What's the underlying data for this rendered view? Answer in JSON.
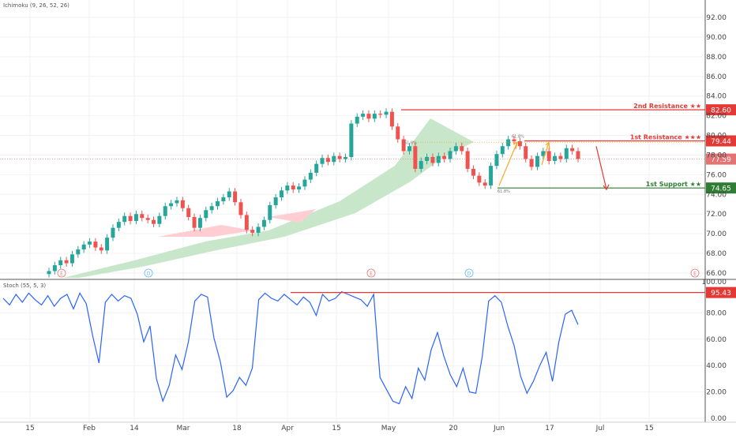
{
  "indicator_main": "Ichimoku (9, 26, 52, 26)",
  "indicator_sub": "Stoch (55, 5, 3)",
  "colors": {
    "up": "#26a69a",
    "down": "#ef5350",
    "resistance": "#e53935",
    "support": "#2e7d32",
    "last": "#e57373",
    "stoch": "#2962ff",
    "grid": "#f2f2f2"
  },
  "chart_data": [
    {
      "type": "candlestick",
      "title": "",
      "ylim": [
        65.5,
        93
      ],
      "y_ticks": [
        "92.00",
        "90.00",
        "88.00",
        "86.00",
        "84.00",
        "82.00",
        "80.00",
        "78.00",
        "76.00",
        "74.00",
        "72.00",
        "70.00",
        "68.00",
        "66.00"
      ],
      "x_ticks": [
        "15",
        "Feb",
        "14",
        "Mar",
        "18",
        "Apr",
        "15",
        "May",
        "20",
        "Jun",
        "17",
        "Jul",
        "15"
      ],
      "levels": [
        {
          "label": "2nd Resistance ★★",
          "value": 82.6,
          "value_text": "82.60",
          "color": "#e53935"
        },
        {
          "label": "1st Resistance ★★★",
          "value": 79.44,
          "value_text": "79.44",
          "color": "#e53935"
        },
        {
          "label": "1st Support ★★",
          "value": 74.65,
          "value_text": "74.65",
          "color": "#2e7d32"
        }
      ],
      "last_price": {
        "value": 77.59,
        "value_text": "77.59"
      },
      "fib_labels": [
        "61.8%",
        "61.8%",
        "61.8%"
      ],
      "close_series": [
        66.2,
        66.8,
        67.3,
        67.0,
        67.9,
        68.4,
        68.9,
        69.2,
        68.6,
        68.3,
        69.6,
        70.6,
        71.2,
        71.8,
        71.3,
        72.0,
        71.6,
        71.4,
        71.0,
        71.8,
        72.8,
        73.1,
        73.4,
        72.6,
        71.7,
        70.6,
        71.6,
        72.4,
        72.8,
        73.3,
        73.7,
        74.3,
        73.2,
        71.9,
        70.4,
        70.1,
        70.7,
        71.4,
        72.9,
        73.7,
        74.4,
        74.9,
        74.5,
        74.8,
        75.5,
        76.2,
        77.1,
        77.7,
        77.3,
        77.9,
        77.6,
        77.8,
        81.2,
        81.9,
        82.2,
        81.7,
        82.2,
        82.1,
        82.4,
        80.9,
        79.6,
        78.4,
        78.9,
        76.6,
        77.4,
        77.8,
        77.2,
        77.9,
        77.6,
        78.4,
        78.9,
        78.4,
        76.6,
        75.9,
        75.2,
        74.9,
        76.9,
        78.1,
        78.9,
        79.6,
        79.4,
        78.9,
        77.6,
        76.8,
        77.9,
        78.4,
        77.4,
        77.9,
        77.6,
        78.7,
        78.4,
        77.6
      ]
    },
    {
      "type": "line",
      "title": "",
      "ylim": [
        0,
        100
      ],
      "y_ticks": [
        "80.00",
        "60.00",
        "40.00",
        "20.00",
        "0.00"
      ],
      "level": {
        "value": 95.43,
        "value_text": "95.43"
      },
      "axis_top_label": "100.00",
      "series": [
        {
          "values": [
            91,
            86,
            94,
            88,
            95,
            90,
            86,
            93,
            85,
            91,
            94,
            83,
            95,
            87,
            63,
            42,
            88,
            94,
            89,
            93,
            91,
            79,
            58,
            70,
            30,
            13,
            25,
            48,
            37,
            58,
            89,
            94,
            92,
            61,
            43,
            16,
            21,
            31,
            25,
            38,
            90,
            95,
            91,
            89,
            94,
            90,
            86,
            92,
            88,
            78,
            94,
            89,
            91,
            96,
            94,
            92,
            90,
            85,
            94,
            31,
            22,
            13,
            11,
            24,
            15,
            38,
            29,
            52,
            65,
            47,
            33,
            24,
            38,
            20,
            19,
            47,
            89,
            93,
            88,
            70,
            55,
            32,
            19,
            28,
            40,
            50,
            28,
            58,
            79,
            82,
            71
          ]
        }
      ]
    }
  ]
}
